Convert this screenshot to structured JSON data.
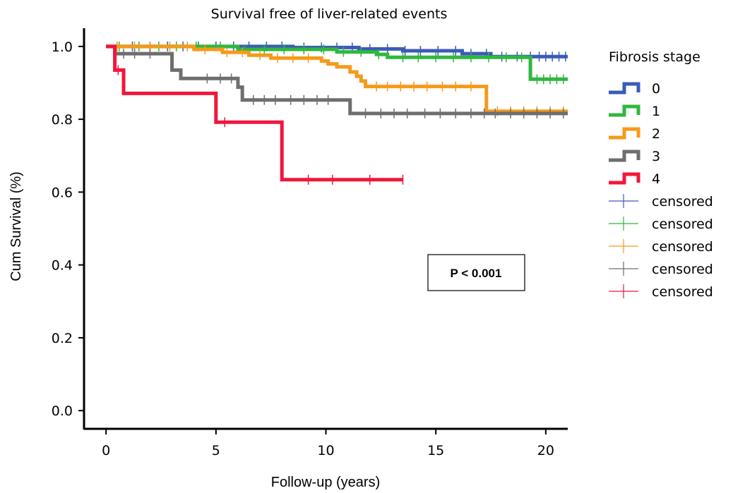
{
  "chart_data": {
    "type": "line",
    "title": "Survival free of liver-related events",
    "xlabel": "Follow-up (years)",
    "ylabel": "Cum Survival (%)",
    "xlim": [
      -1,
      21
    ],
    "ylim": [
      -0.05,
      1.05
    ],
    "x_ticks": [
      0,
      5,
      10,
      15,
      20
    ],
    "y_ticks": [
      0.0,
      0.2,
      0.4,
      0.6,
      0.8,
      1.0
    ],
    "x_tick_labels": [
      "0",
      "5",
      "10",
      "15",
      "20"
    ],
    "y_tick_labels": [
      "0.0",
      "0.2",
      "0.4",
      "0.6",
      "0.8",
      "1.0"
    ],
    "legend": {
      "title": "Fibrosis stage",
      "position": "right"
    },
    "annotation": "P < 0.001",
    "series": [
      {
        "name": "0",
        "color": "#3b5bb8",
        "steps": [
          [
            0,
            1.0
          ],
          [
            8.5,
            0.997
          ],
          [
            11.5,
            0.993
          ],
          [
            13.5,
            0.988
          ],
          [
            16.2,
            0.98
          ],
          [
            17.5,
            0.972
          ],
          [
            21,
            0.972
          ]
        ],
        "censored": [
          0.5,
          1.2,
          2.0,
          2.8,
          3.5,
          4.2,
          5.0,
          5.8,
          6.5,
          7.3,
          8.0,
          9.0,
          9.8,
          10.5,
          11.2,
          12.0,
          12.8,
          13.6,
          14.3,
          15.1,
          15.9,
          16.6,
          17.3,
          18.0,
          18.7,
          19.3,
          19.7,
          20.0,
          20.3,
          20.6,
          20.9
        ]
      },
      {
        "name": "1",
        "color": "#2eb83e",
        "steps": [
          [
            0,
            1.0
          ],
          [
            6.0,
            0.992
          ],
          [
            10.5,
            0.985
          ],
          [
            12.3,
            0.978
          ],
          [
            12.8,
            0.97
          ],
          [
            19.3,
            0.97
          ],
          [
            19.3,
            0.91
          ],
          [
            21,
            0.91
          ]
        ],
        "censored": [
          0.6,
          1.5,
          2.4,
          3.2,
          4.1,
          5.2,
          6.3,
          7.2,
          8.1,
          9.0,
          9.9,
          10.8,
          11.6,
          12.4,
          13.5,
          14.2,
          15.0,
          15.8,
          16.6,
          17.4,
          18.2,
          18.9,
          19.6,
          19.9,
          20.2,
          20.5,
          20.8
        ]
      },
      {
        "name": "2",
        "color": "#f59a1b",
        "steps": [
          [
            0,
            1.0
          ],
          [
            4.0,
            0.992
          ],
          [
            5.3,
            0.984
          ],
          [
            6.5,
            0.976
          ],
          [
            7.5,
            0.968
          ],
          [
            9.8,
            0.96
          ],
          [
            10.1,
            0.952
          ],
          [
            10.5,
            0.944
          ],
          [
            11.1,
            0.93
          ],
          [
            11.4,
            0.918
          ],
          [
            11.6,
            0.905
          ],
          [
            11.8,
            0.89
          ],
          [
            17.3,
            0.89
          ],
          [
            17.3,
            0.822
          ],
          [
            21,
            0.822
          ]
        ],
        "censored": [
          0.5,
          1.3,
          2.0,
          2.9,
          3.7,
          4.5,
          5.5,
          6.2,
          7.0,
          7.8,
          8.5,
          9.2,
          12.3,
          12.8,
          13.4,
          14.0,
          14.6,
          15.3,
          15.9,
          16.6,
          17.8,
          18.4,
          19.0,
          19.6,
          20.2,
          20.8
        ]
      },
      {
        "name": "3",
        "color": "#6e6e6e",
        "steps": [
          [
            0,
            1.0
          ],
          [
            0.4,
            0.98
          ],
          [
            3.0,
            0.98
          ],
          [
            3.0,
            0.935
          ],
          [
            3.4,
            0.935
          ],
          [
            3.4,
            0.912
          ],
          [
            6.0,
            0.912
          ],
          [
            6.0,
            0.888
          ],
          [
            6.2,
            0.888
          ],
          [
            6.2,
            0.853
          ],
          [
            11.1,
            0.853
          ],
          [
            11.1,
            0.816
          ],
          [
            21,
            0.816
          ]
        ],
        "censored": [
          0.8,
          1.3,
          2.0,
          4.6,
          5.2,
          5.7,
          6.7,
          7.2,
          7.7,
          8.4,
          9.0,
          9.6,
          10.1,
          11.8,
          12.5,
          13.1,
          13.7,
          14.5,
          15.2,
          15.9,
          16.6,
          17.2,
          17.7,
          18.4,
          19.0,
          19.6,
          20.2,
          20.8
        ]
      },
      {
        "name": "4",
        "color": "#f0173c",
        "steps": [
          [
            0,
            1.0
          ],
          [
            0.4,
            1.0
          ],
          [
            0.4,
            0.935
          ],
          [
            0.8,
            0.935
          ],
          [
            0.8,
            0.871
          ],
          [
            5.0,
            0.871
          ],
          [
            5.0,
            0.792
          ],
          [
            8.0,
            0.792
          ],
          [
            8.0,
            0.634
          ],
          [
            13.5,
            0.634
          ]
        ],
        "censored": [
          0.55,
          5.4,
          9.2,
          10.3,
          12.0,
          13.5
        ]
      }
    ]
  }
}
